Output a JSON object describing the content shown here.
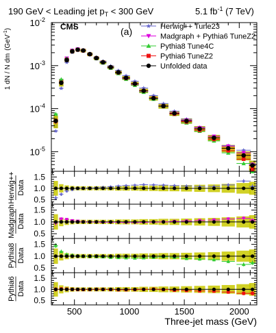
{
  "header": {
    "selection": "190 GeV < Leading jet p",
    "selection_sub": "T",
    "selection_tail": " < 300 GeV",
    "lumi": "5.1 fb",
    "lumi_sup": "-1",
    "energy": " (7 TeV)"
  },
  "chart_data": {
    "type": "scatter",
    "title": "",
    "panel_label": "(a)",
    "experiment": "CMS",
    "xlabel": "Three-jet mass (GeV)",
    "xlim": [
      290,
      2160
    ],
    "x_ticks": [
      500,
      1000,
      1500,
      2000
    ],
    "main": {
      "ylabel": "1 dN / N dm",
      "ylabel_unit": "(GeV",
      "ylabel_unit_sup": "-1",
      "ylabel_unit_tail": ")",
      "yscale": "log",
      "ylim": [
        3.5e-06,
        0.01
      ],
      "y_ticks": [
        {
          "value": 1e-05,
          "base": "10",
          "exp": "-5"
        },
        {
          "value": 0.0001,
          "base": "10",
          "exp": "-4"
        },
        {
          "value": 0.001,
          "base": "10",
          "exp": "-3"
        },
        {
          "value": 0.01,
          "base": "10",
          "exp": "-2"
        }
      ]
    },
    "x": [
      330,
      380,
      430,
      480,
      530,
      580,
      640,
      700,
      760,
      830,
      900,
      970,
      1050,
      1130,
      1220,
      1310,
      1410,
      1520,
      1640,
      1770,
      1900,
      2040,
      2120
    ],
    "x_err_low": [
      20,
      20,
      20,
      20,
      20,
      25,
      25,
      25,
      30,
      30,
      30,
      35,
      35,
      40,
      40,
      45,
      45,
      50,
      50,
      55,
      60,
      65,
      30
    ],
    "x_err_high": [
      20,
      20,
      20,
      20,
      20,
      25,
      25,
      25,
      30,
      30,
      30,
      35,
      35,
      40,
      40,
      45,
      45,
      50,
      50,
      55,
      60,
      65,
      30
    ],
    "data": {
      "name": "Unfolded data",
      "values": [
        5.2e-05,
        0.0004,
        0.00135,
        0.00215,
        0.00235,
        0.00225,
        0.00185,
        0.0015,
        0.0012,
        0.00092,
        0.0007,
        0.00052,
        0.00038,
        0.00026,
        0.000175,
        0.000115,
        7.8e-05,
        5.2e-05,
        3.4e-05,
        2.1e-05,
        1.2e-05,
        8.2e-06,
        4.8e-06
      ],
      "rel_unc": [
        0.25,
        0.14,
        0.1,
        0.08,
        0.07,
        0.07,
        0.07,
        0.07,
        0.07,
        0.07,
        0.08,
        0.08,
        0.08,
        0.09,
        0.09,
        0.1,
        0.1,
        0.11,
        0.12,
        0.13,
        0.15,
        0.18,
        0.22
      ]
    },
    "ratio_panels": [
      {
        "label": "Herwig++",
        "denominator": "Data",
        "series_index": 0
      },
      {
        "label": "Madgraph",
        "denominator": "Data",
        "series_index": 1
      },
      {
        "label": "Pythia8",
        "denominator": "Data",
        "series_index": 2
      },
      {
        "label": "Pythia6",
        "denominator": "Data",
        "series_index": 3
      }
    ],
    "ratio_ylim": [
      0.3,
      1.75
    ],
    "ratio_y_ticks": [
      0.5,
      1.0,
      1.5
    ],
    "ratio_y_tick_labels": [
      "0.5",
      "1.0",
      "1.5"
    ],
    "series": [
      {
        "name": "Herwig++ Tune23",
        "color": "#6666cc",
        "marker": "star",
        "ratio": [
          0.58,
          0.74,
          0.88,
          0.94,
          0.98,
          1.0,
          1.02,
          1.03,
          1.05,
          1.07,
          1.1,
          1.12,
          1.14,
          1.16,
          1.15,
          1.14,
          1.12,
          1.1,
          1.08,
          1.08,
          1.15,
          1.32,
          1.08
        ]
      },
      {
        "name": "Madgraph + Pythia6 TuneZ2",
        "color": "#dd00dd",
        "marker": "triangle-down",
        "ratio": [
          0.95,
          1.12,
          1.1,
          1.05,
          1.03,
          1.0,
          0.99,
          0.99,
          0.98,
          0.98,
          0.98,
          0.97,
          0.97,
          0.98,
          0.99,
          1.0,
          1.02,
          1.04,
          1.06,
          1.08,
          1.12,
          1.15,
          1.05
        ]
      },
      {
        "name": "Pythia8 Tune4C",
        "color": "#33cc33",
        "marker": "triangle-up",
        "ratio": [
          1.45,
          1.2,
          1.08,
          1.05,
          1.02,
          1.0,
          0.99,
          0.98,
          0.97,
          0.95,
          0.94,
          0.93,
          0.92,
          0.93,
          0.95,
          0.97,
          0.95,
          0.9,
          0.88,
          0.85,
          0.78,
          0.65,
          0.72
        ]
      },
      {
        "name": "Pythia6 TuneZ2",
        "color": "#ee1111",
        "marker": "square",
        "ratio": [
          1.0,
          1.02,
          1.01,
          1.0,
          0.99,
          0.99,
          0.99,
          1.0,
          1.0,
          0.99,
          0.98,
          0.98,
          0.99,
          1.0,
          1.01,
          0.99,
          0.96,
          0.95,
          0.93,
          0.92,
          0.88,
          0.82,
          0.82
        ]
      }
    ],
    "legend_position": "top-right"
  }
}
